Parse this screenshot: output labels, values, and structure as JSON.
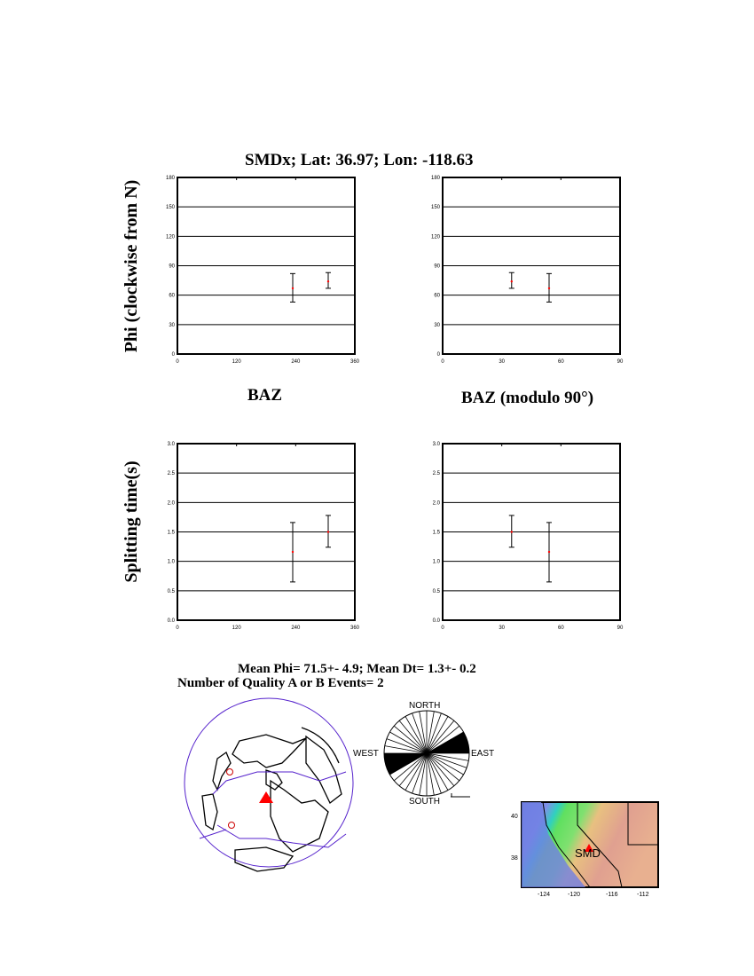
{
  "title": "SMDx; Lat:  36.97;  Lon: -118.63",
  "ylabel_top": "Phi (clockwise from N)",
  "ylabel_bottom": "Splitting time(s)",
  "xlabel_left": "BAZ",
  "xlabel_right": "BAZ (modulo 90°)",
  "summary_line1": "Mean Phi= 71.5+-  4.9; Mean Dt=  1.3+-  0.2",
  "summary_line2": "Number of Quality A  or B Events=  2",
  "colors": {
    "point": "#ff0000",
    "errorbar": "#000000",
    "globe_outline": "#5522cc",
    "station": "#ff0000"
  },
  "chart_data": [
    {
      "type": "scatter",
      "name_id": "phi-vs-baz",
      "xlim": [
        0,
        360
      ],
      "ylim": [
        0,
        180
      ],
      "xticks": [
        "0",
        "120",
        "240",
        "360"
      ],
      "yticks": [
        "0",
        "30",
        "60",
        "90",
        "120",
        "150",
        "180"
      ],
      "grid": "horizontal",
      "points": [
        {
          "x": 234,
          "y": 67,
          "ylo": 53,
          "yhi": 82
        },
        {
          "x": 306,
          "y": 74,
          "ylo": 67,
          "yhi": 83
        }
      ]
    },
    {
      "type": "scatter",
      "name_id": "phi-vs-baz-mod90",
      "xlim": [
        0,
        90
      ],
      "ylim": [
        0,
        180
      ],
      "xticks": [
        "0",
        "30",
        "60",
        "90"
      ],
      "yticks": [
        "0",
        "30",
        "60",
        "90",
        "120",
        "150",
        "180"
      ],
      "grid": "horizontal",
      "points": [
        {
          "x": 35,
          "y": 74,
          "ylo": 67,
          "yhi": 83
        },
        {
          "x": 54,
          "y": 67,
          "ylo": 53,
          "yhi": 82
        }
      ]
    },
    {
      "type": "scatter",
      "name_id": "dt-vs-baz",
      "xlim": [
        0,
        360
      ],
      "ylim": [
        0,
        3
      ],
      "xticks": [
        "0",
        "120",
        "240",
        "360"
      ],
      "yticks": [
        "0.0",
        "0.5",
        "1.0",
        "1.5",
        "2.0",
        "2.5",
        "3.0"
      ],
      "grid": "horizontal",
      "points": [
        {
          "x": 234,
          "y": 1.16,
          "ylo": 0.65,
          "yhi": 1.66
        },
        {
          "x": 306,
          "y": 1.5,
          "ylo": 1.24,
          "yhi": 1.78
        }
      ]
    },
    {
      "type": "scatter",
      "name_id": "dt-vs-baz-mod90",
      "xlim": [
        0,
        90
      ],
      "ylim": [
        0,
        3
      ],
      "xticks": [
        "0",
        "30",
        "60",
        "90"
      ],
      "yticks": [
        "0.0",
        "0.5",
        "1.0",
        "1.5",
        "2.0",
        "2.5",
        "3.0"
      ],
      "grid": "horizontal",
      "points": [
        {
          "x": 35,
          "y": 1.5,
          "ylo": 1.24,
          "yhi": 1.78
        },
        {
          "x": 54,
          "y": 1.16,
          "ylo": 0.65,
          "yhi": 1.66
        }
      ]
    },
    {
      "type": "rose",
      "bin_width_deg": 10,
      "filled_ranges_deg": [
        [
          60,
          90
        ],
        [
          240,
          270
        ]
      ],
      "labels": {
        "north": "NORTH",
        "south": "SOUTH",
        "east": "EAST",
        "west": "WEST"
      }
    }
  ],
  "inset_map": {
    "station_label": "SMD",
    "xticks": [
      "-124",
      "-120",
      "-116",
      "-112"
    ],
    "yticks": [
      "40",
      "38"
    ]
  }
}
